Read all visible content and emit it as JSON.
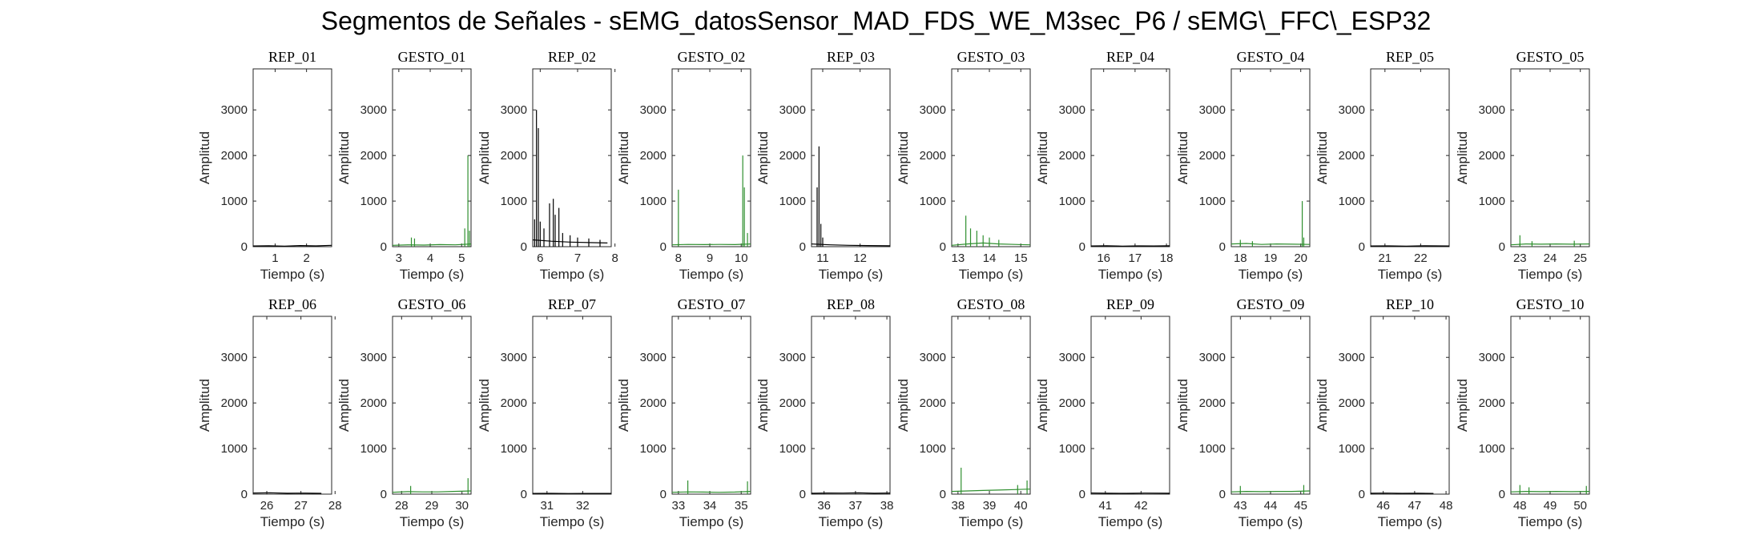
{
  "figure": {
    "suptitle": "Segmentos de Señales - sEMG_datosSensor_MAD_FDS_WE_M3sec_P6 / sEMG\\_FFC\\_ESP32"
  },
  "colors": {
    "rep": "#000000",
    "gesto": "#2f8f2f",
    "axis": "#262626"
  },
  "chart_data": [
    {
      "type": "line",
      "title": "REP_01",
      "xlabel": "Tiempo (s)",
      "ylabel": "Amplitud",
      "xlim": [
        0.3,
        2.8
      ],
      "ylim": [
        0,
        3900
      ],
      "xticks": [
        1,
        2
      ],
      "yticks": [
        0,
        1000,
        2000,
        3000
      ],
      "series": [
        {
          "color": "#000000",
          "x": [
            0.3,
            0.8,
            1.3,
            1.8,
            2.3,
            2.8
          ],
          "y": [
            15,
            20,
            12,
            25,
            18,
            30
          ],
          "spikes": []
        }
      ]
    },
    {
      "type": "line",
      "title": "GESTO_01",
      "xlabel": "Tiempo (s)",
      "ylabel": "Amplitud",
      "xlim": [
        2.8,
        5.3
      ],
      "ylim": [
        0,
        3900
      ],
      "xticks": [
        3,
        4,
        5
      ],
      "yticks": [
        0,
        1000,
        2000,
        3000
      ],
      "series": [
        {
          "color": "#2f8f2f",
          "x": [
            2.8,
            3.3,
            3.8,
            4.3,
            4.8,
            5.3
          ],
          "y": [
            30,
            40,
            35,
            45,
            40,
            60
          ],
          "spikes": [
            [
              3.4,
              200
            ],
            [
              3.5,
              180
            ],
            [
              5.1,
              400
            ],
            [
              5.2,
              2000
            ],
            [
              5.25,
              350
            ]
          ]
        }
      ]
    },
    {
      "type": "line",
      "title": "REP_02",
      "xlabel": "Tiempo (s)",
      "ylabel": "Amplitud",
      "xlim": [
        5.8,
        7.9
      ],
      "ylim": [
        0,
        3900
      ],
      "xticks": [
        6,
        7,
        8
      ],
      "yticks": [
        0,
        1000,
        2000,
        3000
      ],
      "series": [
        {
          "color": "#000000",
          "x": [
            5.8,
            6.3,
            6.8,
            7.3,
            7.8
          ],
          "y": [
            150,
            120,
            100,
            90,
            80
          ],
          "spikes": [
            [
              5.85,
              600
            ],
            [
              5.9,
              3000
            ],
            [
              5.95,
              2600
            ],
            [
              6.0,
              550
            ],
            [
              6.1,
              400
            ],
            [
              6.25,
              950
            ],
            [
              6.35,
              1050
            ],
            [
              6.4,
              700
            ],
            [
              6.5,
              850
            ],
            [
              6.6,
              300
            ],
            [
              6.8,
              250
            ],
            [
              7.0,
              200
            ],
            [
              7.3,
              180
            ],
            [
              7.6,
              150
            ]
          ]
        }
      ]
    },
    {
      "type": "line",
      "title": "GESTO_02",
      "xlabel": "Tiempo (s)",
      "ylabel": "Amplitud",
      "xlim": [
        7.8,
        10.3
      ],
      "ylim": [
        0,
        3900
      ],
      "xticks": [
        8,
        9,
        10
      ],
      "yticks": [
        0,
        1000,
        2000,
        3000
      ],
      "series": [
        {
          "color": "#2f8f2f",
          "x": [
            7.8,
            8.3,
            8.8,
            9.3,
            9.8,
            10.3
          ],
          "y": [
            40,
            50,
            45,
            50,
            45,
            60
          ],
          "spikes": [
            [
              8.0,
              1250
            ],
            [
              10.05,
              2000
            ],
            [
              10.1,
              1300
            ],
            [
              10.2,
              300
            ]
          ]
        }
      ]
    },
    {
      "type": "line",
      "title": "REP_03",
      "xlabel": "Tiempo (s)",
      "ylabel": "Amplitud",
      "xlim": [
        10.7,
        12.8
      ],
      "ylim": [
        0,
        3900
      ],
      "xticks": [
        11,
        12
      ],
      "yticks": [
        0,
        1000,
        2000,
        3000
      ],
      "series": [
        {
          "color": "#000000",
          "x": [
            10.7,
            11.2,
            11.7,
            12.2,
            12.8
          ],
          "y": [
            60,
            40,
            30,
            25,
            20
          ],
          "spikes": [
            [
              10.85,
              1300
            ],
            [
              10.9,
              2200
            ],
            [
              10.95,
              500
            ],
            [
              11.0,
              200
            ]
          ]
        }
      ]
    },
    {
      "type": "line",
      "title": "GESTO_03",
      "xlabel": "Tiempo (s)",
      "ylabel": "Amplitud",
      "xlim": [
        12.8,
        15.3
      ],
      "ylim": [
        0,
        3900
      ],
      "xticks": [
        13,
        14,
        15
      ],
      "yticks": [
        0,
        1000,
        2000,
        3000
      ],
      "series": [
        {
          "color": "#2f8f2f",
          "x": [
            12.8,
            13.3,
            13.8,
            14.3,
            14.8,
            15.3
          ],
          "y": [
            30,
            60,
            80,
            60,
            50,
            40
          ],
          "spikes": [
            [
              13.25,
              680
            ],
            [
              13.4,
              400
            ],
            [
              13.6,
              350
            ],
            [
              13.8,
              250
            ],
            [
              14.0,
              200
            ],
            [
              14.3,
              150
            ]
          ]
        }
      ]
    },
    {
      "type": "line",
      "title": "REP_04",
      "xlabel": "Tiempo (s)",
      "ylabel": "Amplitud",
      "xlim": [
        15.6,
        18.1
      ],
      "ylim": [
        0,
        3900
      ],
      "xticks": [
        16,
        17,
        18
      ],
      "yticks": [
        0,
        1000,
        2000,
        3000
      ],
      "series": [
        {
          "color": "#000000",
          "x": [
            15.6,
            16.1,
            16.6,
            17.1,
            17.6,
            18.1
          ],
          "y": [
            15,
            20,
            12,
            18,
            15,
            20
          ],
          "spikes": []
        }
      ]
    },
    {
      "type": "line",
      "title": "GESTO_04",
      "xlabel": "Tiempo (s)",
      "ylabel": "Amplitud",
      "xlim": [
        17.7,
        20.3
      ],
      "ylim": [
        0,
        3900
      ],
      "xticks": [
        18,
        19,
        20
      ],
      "yticks": [
        0,
        1000,
        2000,
        3000
      ],
      "series": [
        {
          "color": "#2f8f2f",
          "x": [
            17.7,
            18.2,
            18.7,
            19.2,
            19.7,
            20.3
          ],
          "y": [
            60,
            70,
            50,
            60,
            55,
            50
          ],
          "spikes": [
            [
              18.0,
              150
            ],
            [
              18.4,
              120
            ],
            [
              20.05,
              1000
            ],
            [
              20.1,
              200
            ]
          ]
        }
      ]
    },
    {
      "type": "line",
      "title": "REP_05",
      "xlabel": "Tiempo (s)",
      "ylabel": "Amplitud",
      "xlim": [
        20.6,
        22.8
      ],
      "ylim": [
        0,
        3900
      ],
      "xticks": [
        21,
        22
      ],
      "yticks": [
        0,
        1000,
        2000,
        3000
      ],
      "series": [
        {
          "color": "#000000",
          "x": [
            20.6,
            21.1,
            21.6,
            22.1,
            22.8
          ],
          "y": [
            15,
            18,
            12,
            20,
            15
          ],
          "spikes": []
        }
      ]
    },
    {
      "type": "line",
      "title": "GESTO_05",
      "xlabel": "Tiempo (s)",
      "ylabel": "Amplitud",
      "xlim": [
        22.7,
        25.3
      ],
      "ylim": [
        0,
        3900
      ],
      "xticks": [
        23,
        24,
        25
      ],
      "yticks": [
        0,
        1000,
        2000,
        3000
      ],
      "series": [
        {
          "color": "#2f8f2f",
          "x": [
            22.7,
            23.2,
            23.7,
            24.2,
            24.7,
            25.3
          ],
          "y": [
            40,
            60,
            55,
            60,
            55,
            60
          ],
          "spikes": [
            [
              23.0,
              250
            ],
            [
              23.4,
              120
            ],
            [
              24.8,
              130
            ]
          ]
        }
      ]
    },
    {
      "type": "line",
      "title": "REP_06",
      "xlabel": "Tiempo (s)",
      "ylabel": "Amplitud",
      "xlim": [
        25.6,
        27.9
      ],
      "ylim": [
        0,
        3900
      ],
      "xticks": [
        26,
        27,
        28
      ],
      "yticks": [
        0,
        1000,
        2000,
        3000
      ],
      "series": [
        {
          "color": "#000000",
          "x": [
            25.6,
            26.1,
            26.6,
            27.1,
            27.6
          ],
          "y": [
            25,
            30,
            20,
            22,
            18
          ],
          "spikes": []
        }
      ]
    },
    {
      "type": "line",
      "title": "GESTO_06",
      "xlabel": "Tiempo (s)",
      "ylabel": "Amplitud",
      "xlim": [
        27.7,
        30.3
      ],
      "ylim": [
        0,
        3900
      ],
      "xticks": [
        28,
        29,
        30
      ],
      "yticks": [
        0,
        1000,
        2000,
        3000
      ],
      "series": [
        {
          "color": "#2f8f2f",
          "x": [
            27.7,
            28.2,
            28.7,
            29.2,
            29.7,
            30.3
          ],
          "y": [
            40,
            55,
            50,
            50,
            60,
            70
          ],
          "spikes": [
            [
              28.3,
              180
            ],
            [
              30.2,
              350
            ]
          ]
        }
      ]
    },
    {
      "type": "line",
      "title": "REP_07",
      "xlabel": "Tiempo (s)",
      "ylabel": "Amplitud",
      "xlim": [
        30.6,
        32.8
      ],
      "ylim": [
        0,
        3900
      ],
      "xticks": [
        31,
        32
      ],
      "yticks": [
        0,
        1000,
        2000,
        3000
      ],
      "series": [
        {
          "color": "#000000",
          "x": [
            30.6,
            31.1,
            31.6,
            32.1,
            32.8
          ],
          "y": [
            15,
            18,
            14,
            16,
            15
          ],
          "spikes": []
        }
      ]
    },
    {
      "type": "line",
      "title": "GESTO_07",
      "xlabel": "Tiempo (s)",
      "ylabel": "Amplitud",
      "xlim": [
        32.8,
        35.3
      ],
      "ylim": [
        0,
        3900
      ],
      "xticks": [
        33,
        34,
        35
      ],
      "yticks": [
        0,
        1000,
        2000,
        3000
      ],
      "series": [
        {
          "color": "#2f8f2f",
          "x": [
            32.8,
            33.3,
            33.8,
            34.3,
            34.8,
            35.3
          ],
          "y": [
            40,
            50,
            45,
            40,
            45,
            60
          ],
          "spikes": [
            [
              33.3,
              300
            ],
            [
              35.2,
              280
            ]
          ]
        }
      ]
    },
    {
      "type": "line",
      "title": "REP_08",
      "xlabel": "Tiempo (s)",
      "ylabel": "Amplitud",
      "xlim": [
        35.6,
        38.1
      ],
      "ylim": [
        0,
        3900
      ],
      "xticks": [
        36,
        37,
        38
      ],
      "yticks": [
        0,
        1000,
        2000,
        3000
      ],
      "series": [
        {
          "color": "#000000",
          "x": [
            35.6,
            36.1,
            36.6,
            37.1,
            37.6,
            38.1
          ],
          "y": [
            20,
            25,
            22,
            28,
            20,
            25
          ],
          "spikes": []
        }
      ]
    },
    {
      "type": "line",
      "title": "GESTO_08",
      "xlabel": "Tiempo (s)",
      "ylabel": "Amplitud",
      "xlim": [
        37.8,
        40.3
      ],
      "ylim": [
        0,
        3900
      ],
      "xticks": [
        38,
        39,
        40
      ],
      "yticks": [
        0,
        1000,
        2000,
        3000
      ],
      "series": [
        {
          "color": "#2f8f2f",
          "x": [
            37.8,
            38.3,
            38.8,
            39.3,
            39.8,
            40.3
          ],
          "y": [
            60,
            70,
            80,
            90,
            100,
            110
          ],
          "spikes": [
            [
              38.1,
              580
            ],
            [
              39.9,
              200
            ],
            [
              40.2,
              300
            ]
          ]
        }
      ]
    },
    {
      "type": "line",
      "title": "REP_09",
      "xlabel": "Tiempo (s)",
      "ylabel": "Amplitud",
      "xlim": [
        40.6,
        42.8
      ],
      "ylim": [
        0,
        3900
      ],
      "xticks": [
        41,
        42
      ],
      "yticks": [
        0,
        1000,
        2000,
        3000
      ],
      "series": [
        {
          "color": "#000000",
          "x": [
            40.6,
            41.1,
            41.6,
            42.1,
            42.8
          ],
          "y": [
            25,
            20,
            18,
            22,
            20
          ],
          "spikes": []
        }
      ]
    },
    {
      "type": "line",
      "title": "GESTO_09",
      "xlabel": "Tiempo (s)",
      "ylabel": "Amplitud",
      "xlim": [
        42.7,
        45.3
      ],
      "ylim": [
        0,
        3900
      ],
      "xticks": [
        43,
        44,
        45
      ],
      "yticks": [
        0,
        1000,
        2000,
        3000
      ],
      "series": [
        {
          "color": "#2f8f2f",
          "x": [
            42.7,
            43.2,
            43.7,
            44.2,
            44.7,
            45.3
          ],
          "y": [
            50,
            60,
            55,
            60,
            60,
            70
          ],
          "spikes": [
            [
              43.0,
              180
            ],
            [
              45.1,
              200
            ]
          ]
        }
      ]
    },
    {
      "type": "line",
      "title": "REP_10",
      "xlabel": "Tiempo (s)",
      "ylabel": "Amplitud",
      "xlim": [
        45.6,
        48.1
      ],
      "ylim": [
        0,
        3900
      ],
      "xticks": [
        46,
        47,
        48
      ],
      "yticks": [
        0,
        1000,
        2000,
        3000
      ],
      "series": [
        {
          "color": "#000000",
          "x": [
            45.6,
            46.1,
            46.6,
            47.1,
            47.6
          ],
          "y": [
            20,
            22,
            18,
            20,
            15
          ],
          "spikes": []
        }
      ]
    },
    {
      "type": "line",
      "title": "GESTO_10",
      "xlabel": "Tiempo (s)",
      "ylabel": "Amplitud",
      "xlim": [
        47.7,
        50.3
      ],
      "ylim": [
        0,
        3900
      ],
      "xticks": [
        48,
        49,
        50
      ],
      "yticks": [
        0,
        1000,
        2000,
        3000
      ],
      "series": [
        {
          "color": "#2f8f2f",
          "x": [
            47.7,
            48.2,
            48.7,
            49.2,
            49.7,
            50.3
          ],
          "y": [
            50,
            60,
            55,
            60,
            55,
            60
          ],
          "spikes": [
            [
              48.0,
              200
            ],
            [
              48.3,
              150
            ],
            [
              50.2,
              180
            ]
          ]
        }
      ]
    }
  ]
}
